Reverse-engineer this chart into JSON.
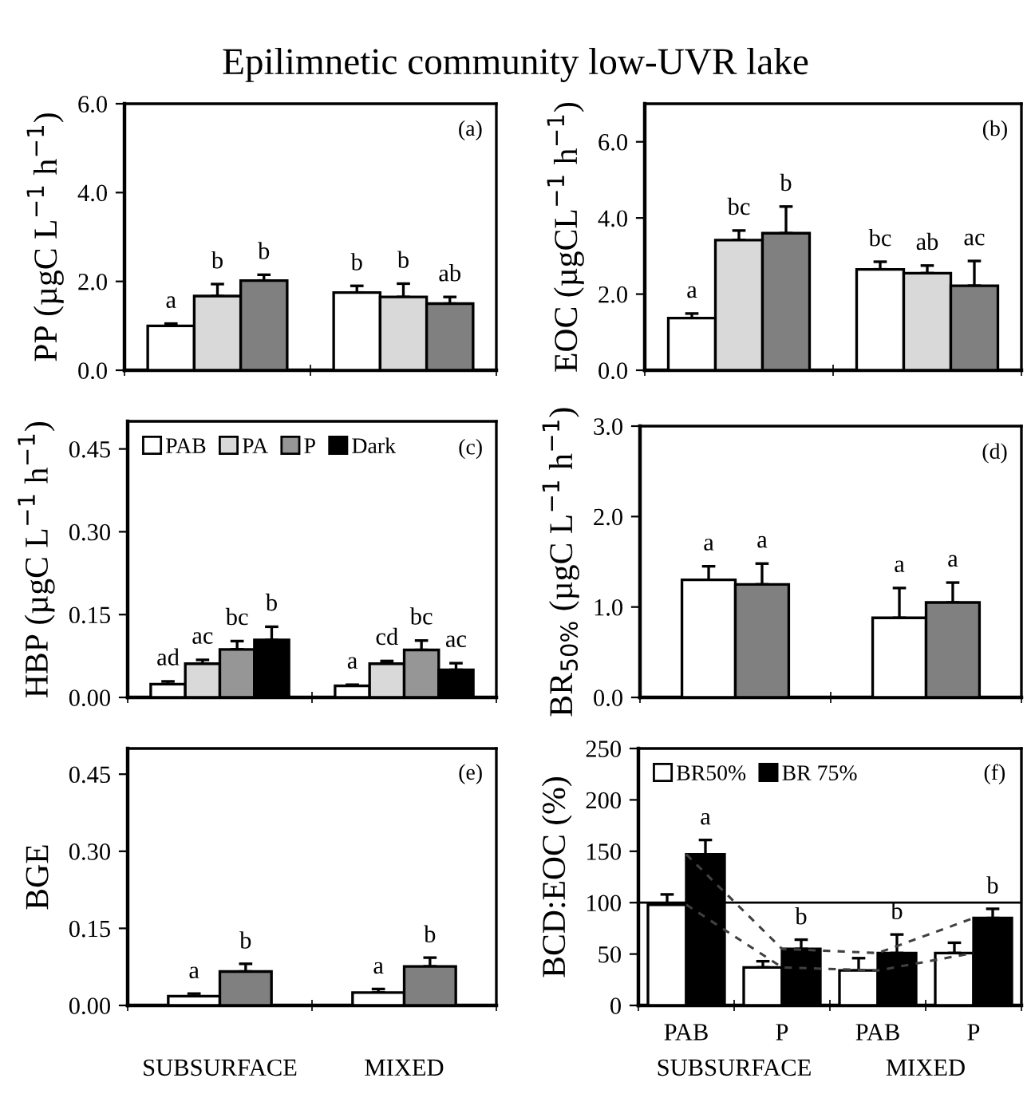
{
  "chart_data": [
    {
      "type": "bar",
      "title": "Epilimnetic community low-UVR lake",
      "subtitle": "(a)",
      "ylabel": "PP (µgC L$^{−1}$ h$^{−1}$)",
      "categories": [
        null,
        null
      ],
      "ylim": [
        0,
        6
      ],
      "yticks": [
        {
          "value": 0,
          "label": "0.0"
        },
        {
          "value": 2,
          "label": "2.0"
        },
        {
          "value": 4,
          "label": "4.0"
        },
        {
          "value": 6,
          "label": "6.0"
        }
      ],
      "series": [
        {
          "color": "#ffffff",
          "values": [
            1.0,
            1.75
          ],
          "errors": [
            0.05,
            0.15
          ]
        },
        {
          "color": "#d9d9d9",
          "values": [
            1.67,
            1.65
          ],
          "errors": [
            0.27,
            0.3
          ]
        },
        {
          "color": "#808080",
          "values": [
            2.02,
            1.5
          ],
          "errors": [
            0.13,
            0.15
          ]
        }
      ],
      "annotations": [
        "a",
        "b",
        "b",
        "b",
        "b",
        "ab"
      ]
    },
    {
      "type": "bar",
      "subtitle": "(b)",
      "ylabel": "EOC (µgCL$^{−1}$ h$^{−1}$)",
      "categories": [
        null,
        null
      ],
      "ylim": [
        0,
        7
      ],
      "yticks": [
        {
          "value": 0,
          "label": "0.0"
        },
        {
          "value": 2,
          "label": "2.0"
        },
        {
          "value": 4,
          "label": "4.0"
        },
        {
          "value": 6,
          "label": "6.0"
        }
      ],
      "series": [
        {
          "color": "#ffffff",
          "values": [
            1.37,
            2.65
          ],
          "errors": [
            0.12,
            0.2
          ]
        },
        {
          "color": "#d9d9d9",
          "values": [
            3.42,
            2.55
          ],
          "errors": [
            0.25,
            0.2
          ]
        },
        {
          "color": "#808080",
          "values": [
            3.6,
            2.22
          ],
          "errors": [
            0.7,
            0.65
          ]
        }
      ],
      "annotations": [
        "a",
        "bc",
        "b",
        "bc",
        "ab",
        "ac"
      ]
    },
    {
      "type": "bar",
      "subtitle": "(c)",
      "ylabel": "HBP (µgC L$^{−1}$ h$^{−1}$)",
      "categories": [
        null,
        null
      ],
      "ylim": [
        0,
        0.5
      ],
      "yticks": [
        {
          "value": 0,
          "label": "0.00"
        },
        {
          "value": 0.15,
          "label": "0.15"
        },
        {
          "value": 0.3,
          "label": "0.30"
        },
        {
          "value": 0.45,
          "label": "0.45"
        }
      ],
      "legend": "top left",
      "series": [
        {
          "name": "PAB",
          "color": "#ffffff",
          "values": [
            0.024,
            0.021
          ],
          "errors": [
            0.005,
            0.002
          ]
        },
        {
          "name": "PA",
          "color": "#d9d9d9",
          "values": [
            0.061,
            0.061
          ],
          "errors": [
            0.007,
            0.005
          ]
        },
        {
          "name": "P",
          "color": "#969696",
          "values": [
            0.087,
            0.086
          ],
          "errors": [
            0.015,
            0.017
          ]
        },
        {
          "name": "Dark",
          "color": "#000000",
          "values": [
            0.104,
            0.05
          ],
          "errors": [
            0.024,
            0.012
          ]
        }
      ],
      "annotations": [
        "ad",
        "ac",
        "bc",
        "b",
        "a",
        "cd",
        "bc",
        "ac"
      ]
    },
    {
      "type": "bar",
      "subtitle": "(d)",
      "ylabel": "BR$_{50%}$ (µgC L$^{−1}$ h$^{−1}$)",
      "categories": [
        null,
        null
      ],
      "ylim": [
        0,
        3
      ],
      "yticks": [
        {
          "value": 0,
          "label": "0.0"
        },
        {
          "value": 1,
          "label": "1.0"
        },
        {
          "value": 2,
          "label": "2.0"
        },
        {
          "value": 3,
          "label": "3.0"
        }
      ],
      "series": [
        {
          "color": "#ffffff",
          "values": [
            1.3,
            0.88
          ],
          "errors": [
            0.15,
            0.33
          ]
        },
        {
          "color": "#808080",
          "values": [
            1.25,
            1.05
          ],
          "errors": [
            0.23,
            0.22
          ]
        }
      ],
      "annotations": [
        "a",
        "a",
        "a",
        "a"
      ]
    },
    {
      "type": "bar",
      "subtitle": "(e)",
      "ylabel": "BGE",
      "categories": [
        "SUBSURFACE",
        "MIXED"
      ],
      "ylim": [
        0,
        0.5
      ],
      "yticks": [
        {
          "value": 0,
          "label": "0.00"
        },
        {
          "value": 0.15,
          "label": "0.15"
        },
        {
          "value": 0.3,
          "label": "0.30"
        },
        {
          "value": 0.45,
          "label": "0.45"
        }
      ],
      "series": [
        {
          "color": "#ffffff",
          "values": [
            0.018,
            0.025
          ],
          "errors": [
            0.005,
            0.007
          ]
        },
        {
          "color": "#808080",
          "values": [
            0.066,
            0.076
          ],
          "errors": [
            0.015,
            0.017
          ]
        }
      ],
      "annotations": [
        "a",
        "b",
        "a",
        "b"
      ]
    },
    {
      "type": "bar",
      "subtitle": "(f)",
      "ylabel": "BCD:EOC (%)",
      "categories": [
        "PAB",
        "P",
        "PAB",
        "P"
      ],
      "ylim": [
        0,
        250
      ],
      "yticks": [
        0,
        50,
        100,
        150,
        200,
        250
      ],
      "legend": "top left",
      "ref_lines": [
        {
          "axis": "y",
          "value": 100,
          "color": "#000000"
        }
      ],
      "series": [
        {
          "name": "BR50%",
          "color": "#ffffff",
          "values": [
            98,
            37,
            34,
            51
          ],
          "errors": [
            10,
            6,
            12,
            10
          ]
        },
        {
          "name": "BR 75%",
          "color": "#000000",
          "values": [
            147,
            55,
            51,
            85
          ],
          "errors": [
            14,
            9,
            18,
            9
          ]
        },
        {
          "type": "line",
          "color": "#404040",
          "line_style": "dashed",
          "values": [
            98,
            37,
            34,
            51
          ]
        },
        {
          "type": "line",
          "color": "#404040",
          "line_style": "dashed",
          "values": [
            147,
            55,
            51,
            85
          ]
        }
      ],
      "annotations": [
        "a",
        "b",
        "b",
        "b",
        "SUBSURFACE",
        "MIXED"
      ]
    }
  ]
}
